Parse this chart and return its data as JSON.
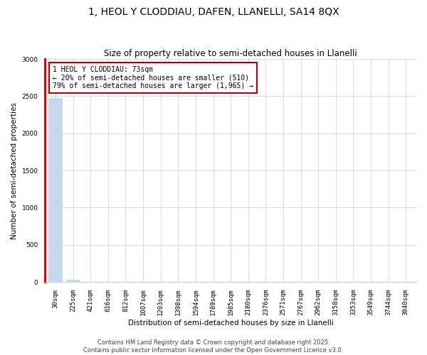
{
  "title": "1, HEOL Y CLODDIAU, DAFEN, LLANELLI, SA14 8QX",
  "subtitle": "Size of property relative to semi-detached houses in Llanelli",
  "xlabel": "Distribution of semi-detached houses by size in Llanelli",
  "ylabel": "Number of semi-detached properties",
  "categories": [
    "30sqm",
    "225sqm",
    "421sqm",
    "616sqm",
    "812sqm",
    "1007sqm",
    "1203sqm",
    "1398sqm",
    "1594sqm",
    "1789sqm",
    "1985sqm",
    "2180sqm",
    "2376sqm",
    "2571sqm",
    "2767sqm",
    "2962sqm",
    "3158sqm",
    "3353sqm",
    "3549sqm",
    "3744sqm",
    "3940sqm"
  ],
  "values": [
    2475,
    30,
    5,
    2,
    1,
    1,
    1,
    0,
    0,
    0,
    0,
    0,
    0,
    0,
    0,
    0,
    0,
    0,
    0,
    0,
    0
  ],
  "bar_color": "#c8d9ee",
  "red_line_color": "#c00000",
  "annotation_title": "1 HEOL Y CLODDIAU: 73sqm",
  "annotation_line2": "← 20% of semi-detached houses are smaller (510)",
  "annotation_line3": "79% of semi-detached houses are larger (1,965) →",
  "annotation_box_color": "#c00000",
  "ylim": [
    0,
    3000
  ],
  "yticks": [
    0,
    500,
    1000,
    1500,
    2000,
    2500,
    3000
  ],
  "footer_line1": "Contains HM Land Registry data © Crown copyright and database right 2025.",
  "footer_line2": "Contains public sector information licensed under the Open Government Licence v3.0.",
  "bg_color": "#ffffff",
  "grid_color": "#cccccc",
  "title_fontsize": 10,
  "subtitle_fontsize": 8.5,
  "axis_label_fontsize": 7.5,
  "tick_fontsize": 6.5,
  "annotation_fontsize": 7,
  "footer_fontsize": 6
}
